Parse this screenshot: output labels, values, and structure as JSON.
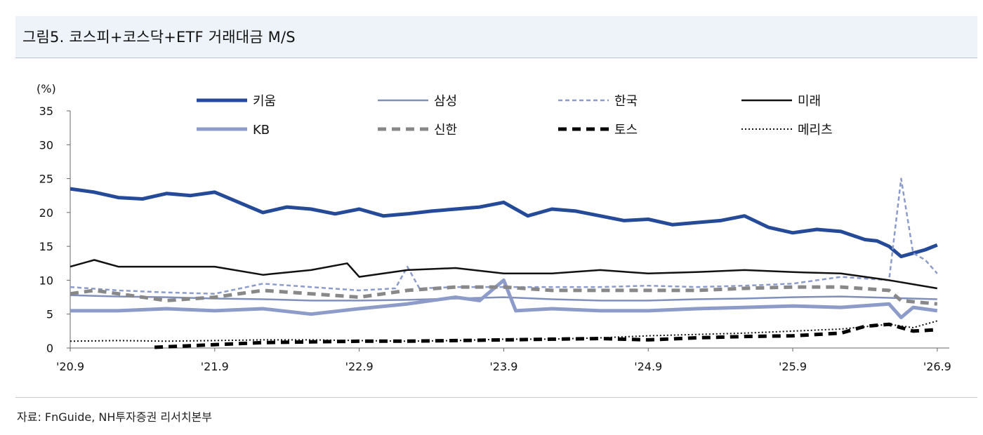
{
  "title": "그림5. 코스피+코스닥+ETF 거래대금 M/S",
  "source": "자료: FnGuide, NH투자증권 리서치본부",
  "chart_data": {
    "type": "line",
    "ylabel": "(%)",
    "ylim": [
      0,
      35
    ],
    "yticks": [
      "0",
      "5",
      "10",
      "15",
      "20",
      "25",
      "30",
      "35"
    ],
    "xlim": [
      "2020-09",
      "2026-10"
    ],
    "xticks": [
      {
        "label": "'20.9",
        "date": "2020-09"
      },
      {
        "label": "'21.9",
        "date": "2021-09"
      },
      {
        "label": "'22.9",
        "date": "2022-09"
      },
      {
        "label": "'23.9",
        "date": "2023-09"
      },
      {
        "label": "'24.9",
        "date": "2024-09"
      },
      {
        "label": "'25.9",
        "date": "2025-09"
      },
      {
        "label": "'26.9",
        "date": "2026-09"
      }
    ],
    "legend_position": "top",
    "series": [
      {
        "name": "키움",
        "color": "#244a98",
        "width": 5,
        "dash": "",
        "points": [
          [
            "2020-09",
            23.5
          ],
          [
            "2020-11",
            23.0
          ],
          [
            "2021-01",
            22.2
          ],
          [
            "2021-03",
            22.0
          ],
          [
            "2021-05",
            22.8
          ],
          [
            "2021-07",
            22.5
          ],
          [
            "2021-09",
            23.0
          ],
          [
            "2021-11",
            21.5
          ],
          [
            "2022-01",
            20.0
          ],
          [
            "2022-03",
            20.8
          ],
          [
            "2022-05",
            20.5
          ],
          [
            "2022-07",
            19.8
          ],
          [
            "2022-09",
            20.5
          ],
          [
            "2022-11",
            19.5
          ],
          [
            "2023-01",
            19.8
          ],
          [
            "2023-03",
            20.2
          ],
          [
            "2023-05",
            20.5
          ],
          [
            "2023-07",
            20.8
          ],
          [
            "2023-09",
            21.5
          ],
          [
            "2023-11",
            19.5
          ],
          [
            "2024-01",
            20.5
          ],
          [
            "2024-03",
            20.2
          ],
          [
            "2024-05",
            19.5
          ],
          [
            "2024-07",
            18.8
          ],
          [
            "2024-09",
            19.0
          ],
          [
            "2024-11",
            18.2
          ],
          [
            "2025-01",
            18.5
          ],
          [
            "2025-03",
            18.8
          ],
          [
            "2025-05",
            19.5
          ],
          [
            "2025-07",
            17.8
          ],
          [
            "2025-09",
            17.0
          ],
          [
            "2025-11",
            17.5
          ],
          [
            "2026-01",
            17.2
          ],
          [
            "2026-03",
            16.0
          ],
          [
            "2026-04",
            15.8
          ],
          [
            "2026-05",
            15.0
          ],
          [
            "2026-06",
            13.5
          ],
          [
            "2026-07",
            14.0
          ],
          [
            "2026-08",
            14.5
          ],
          [
            "2026-09",
            15.2
          ]
        ]
      },
      {
        "name": "삼성",
        "color": "#8090bb",
        "width": 2.5,
        "dash": "",
        "points": [
          [
            "2020-09",
            7.8
          ],
          [
            "2021-01",
            7.6
          ],
          [
            "2021-05",
            7.5
          ],
          [
            "2021-09",
            7.3
          ],
          [
            "2022-01",
            7.2
          ],
          [
            "2022-05",
            7.0
          ],
          [
            "2022-09",
            7.0
          ],
          [
            "2023-01",
            7.1
          ],
          [
            "2023-05",
            7.3
          ],
          [
            "2023-09",
            7.5
          ],
          [
            "2024-01",
            7.2
          ],
          [
            "2024-05",
            7.0
          ],
          [
            "2024-09",
            7.0
          ],
          [
            "2025-01",
            7.2
          ],
          [
            "2025-05",
            7.3
          ],
          [
            "2025-09",
            7.5
          ],
          [
            "2026-01",
            7.6
          ],
          [
            "2026-05",
            7.4
          ],
          [
            "2026-09",
            7.2
          ]
        ]
      },
      {
        "name": "한국",
        "color": "#8b9ccb",
        "width": 2.5,
        "dash": "6,4",
        "points": [
          [
            "2020-09",
            9.0
          ],
          [
            "2021-01",
            8.5
          ],
          [
            "2021-05",
            8.2
          ],
          [
            "2021-09",
            8.0
          ],
          [
            "2022-01",
            9.5
          ],
          [
            "2022-05",
            9.0
          ],
          [
            "2022-09",
            8.5
          ],
          [
            "2022-12",
            8.8
          ],
          [
            "2023-01",
            12.0
          ],
          [
            "2023-02",
            8.8
          ],
          [
            "2023-05",
            9.0
          ],
          [
            "2023-09",
            9.0
          ],
          [
            "2024-01",
            9.0
          ],
          [
            "2024-05",
            9.0
          ],
          [
            "2024-09",
            9.2
          ],
          [
            "2025-01",
            9.0
          ],
          [
            "2025-05",
            9.2
          ],
          [
            "2025-09",
            9.5
          ],
          [
            "2026-01",
            10.5
          ],
          [
            "2026-05",
            10.0
          ],
          [
            "2026-06",
            25.0
          ],
          [
            "2026-07",
            14.0
          ],
          [
            "2026-08",
            13.0
          ],
          [
            "2026-09",
            11.0
          ]
        ]
      },
      {
        "name": "미래",
        "color": "#111111",
        "width": 2.5,
        "dash": "",
        "points": [
          [
            "2020-09",
            12.0
          ],
          [
            "2020-11",
            13.0
          ],
          [
            "2021-01",
            12.0
          ],
          [
            "2021-05",
            12.0
          ],
          [
            "2021-09",
            12.0
          ],
          [
            "2022-01",
            10.8
          ],
          [
            "2022-05",
            11.5
          ],
          [
            "2022-08",
            12.5
          ],
          [
            "2022-09",
            10.5
          ],
          [
            "2023-01",
            11.5
          ],
          [
            "2023-05",
            11.8
          ],
          [
            "2023-09",
            11.0
          ],
          [
            "2024-01",
            11.0
          ],
          [
            "2024-05",
            11.5
          ],
          [
            "2024-09",
            11.0
          ],
          [
            "2025-01",
            11.2
          ],
          [
            "2025-05",
            11.5
          ],
          [
            "2025-09",
            11.2
          ],
          [
            "2026-01",
            11.0
          ],
          [
            "2026-05",
            10.0
          ],
          [
            "2026-09",
            8.8
          ]
        ]
      },
      {
        "name": "KB",
        "color": "#8c9bc8",
        "width": 5,
        "dash": "",
        "points": [
          [
            "2020-09",
            5.5
          ],
          [
            "2021-01",
            5.5
          ],
          [
            "2021-05",
            5.8
          ],
          [
            "2021-09",
            5.5
          ],
          [
            "2022-01",
            5.8
          ],
          [
            "2022-05",
            5.0
          ],
          [
            "2022-09",
            5.8
          ],
          [
            "2023-01",
            6.5
          ],
          [
            "2023-05",
            7.5
          ],
          [
            "2023-07",
            7.0
          ],
          [
            "2023-09",
            10.0
          ],
          [
            "2023-10",
            5.5
          ],
          [
            "2024-01",
            5.8
          ],
          [
            "2024-05",
            5.5
          ],
          [
            "2024-09",
            5.5
          ],
          [
            "2025-01",
            5.8
          ],
          [
            "2025-05",
            6.0
          ],
          [
            "2025-09",
            6.2
          ],
          [
            "2026-01",
            6.0
          ],
          [
            "2026-05",
            6.5
          ],
          [
            "2026-06",
            4.5
          ],
          [
            "2026-07",
            6.0
          ],
          [
            "2026-09",
            5.5
          ]
        ]
      },
      {
        "name": "신한",
        "color": "#888888",
        "width": 5,
        "dash": "12,8",
        "points": [
          [
            "2020-09",
            8.0
          ],
          [
            "2020-11",
            8.5
          ],
          [
            "2021-01",
            8.0
          ],
          [
            "2021-05",
            7.0
          ],
          [
            "2021-09",
            7.5
          ],
          [
            "2022-01",
            8.5
          ],
          [
            "2022-05",
            8.0
          ],
          [
            "2022-09",
            7.5
          ],
          [
            "2023-01",
            8.5
          ],
          [
            "2023-05",
            9.0
          ],
          [
            "2023-09",
            9.0
          ],
          [
            "2024-01",
            8.5
          ],
          [
            "2024-05",
            8.5
          ],
          [
            "2024-09",
            8.5
          ],
          [
            "2025-01",
            8.5
          ],
          [
            "2025-05",
            8.8
          ],
          [
            "2025-09",
            9.0
          ],
          [
            "2026-01",
            9.0
          ],
          [
            "2026-05",
            8.5
          ],
          [
            "2026-06",
            7.0
          ],
          [
            "2026-09",
            6.5
          ]
        ]
      },
      {
        "name": "토스",
        "color": "#000000",
        "width": 5,
        "dash": "12,8",
        "points": [
          [
            "2021-04",
            0.1
          ],
          [
            "2021-09",
            0.5
          ],
          [
            "2022-01",
            0.8
          ],
          [
            "2022-05",
            0.9
          ],
          [
            "2022-09",
            1.0
          ],
          [
            "2023-01",
            1.0
          ],
          [
            "2023-05",
            1.1
          ],
          [
            "2023-09",
            1.2
          ],
          [
            "2024-01",
            1.3
          ],
          [
            "2024-05",
            1.4
          ],
          [
            "2024-09",
            1.2
          ],
          [
            "2025-01",
            1.5
          ],
          [
            "2025-05",
            1.7
          ],
          [
            "2025-09",
            1.8
          ],
          [
            "2026-01",
            2.2
          ],
          [
            "2026-03",
            3.2
          ],
          [
            "2026-05",
            3.5
          ],
          [
            "2026-07",
            2.5
          ],
          [
            "2026-09",
            2.7
          ]
        ]
      },
      {
        "name": "메리츠",
        "color": "#111111",
        "width": 2,
        "dash": "2,3",
        "points": [
          [
            "2020-09",
            1.0
          ],
          [
            "2021-01",
            1.1
          ],
          [
            "2021-05",
            1.0
          ],
          [
            "2021-09",
            1.1
          ],
          [
            "2022-01",
            1.2
          ],
          [
            "2022-05",
            1.2
          ],
          [
            "2022-09",
            1.1
          ],
          [
            "2023-01",
            1.0
          ],
          [
            "2023-05",
            1.1
          ],
          [
            "2023-09",
            1.3
          ],
          [
            "2024-01",
            1.3
          ],
          [
            "2024-05",
            1.5
          ],
          [
            "2024-09",
            1.8
          ],
          [
            "2025-01",
            2.0
          ],
          [
            "2025-05",
            2.2
          ],
          [
            "2025-09",
            2.5
          ],
          [
            "2026-01",
            2.8
          ],
          [
            "2026-05",
            3.5
          ],
          [
            "2026-07",
            3.0
          ],
          [
            "2026-09",
            4.0
          ]
        ]
      }
    ]
  }
}
